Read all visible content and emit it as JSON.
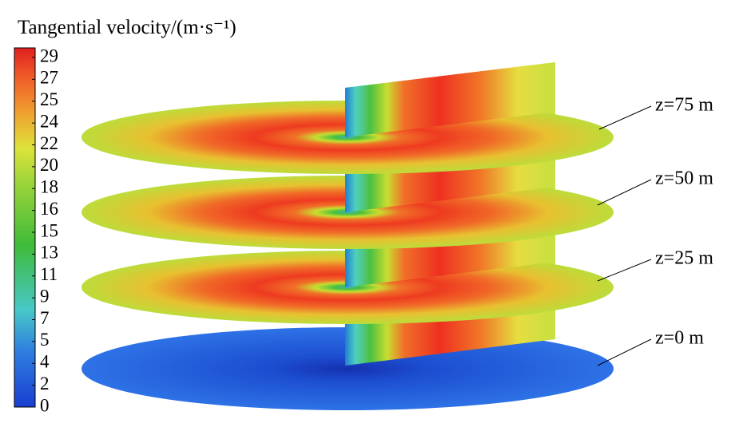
{
  "title": "Tangential velocity/(m·s⁻¹)",
  "colorbar": {
    "labels": [
      29,
      27,
      25,
      24,
      22,
      20,
      18,
      16,
      15,
      13,
      11,
      9,
      7,
      5,
      4,
      2,
      0
    ]
  },
  "planes": [
    {
      "label": "z=75 m"
    },
    {
      "label": "z=50 m"
    },
    {
      "label": "z=25 m"
    },
    {
      "label": "z=0 m"
    }
  ]
}
